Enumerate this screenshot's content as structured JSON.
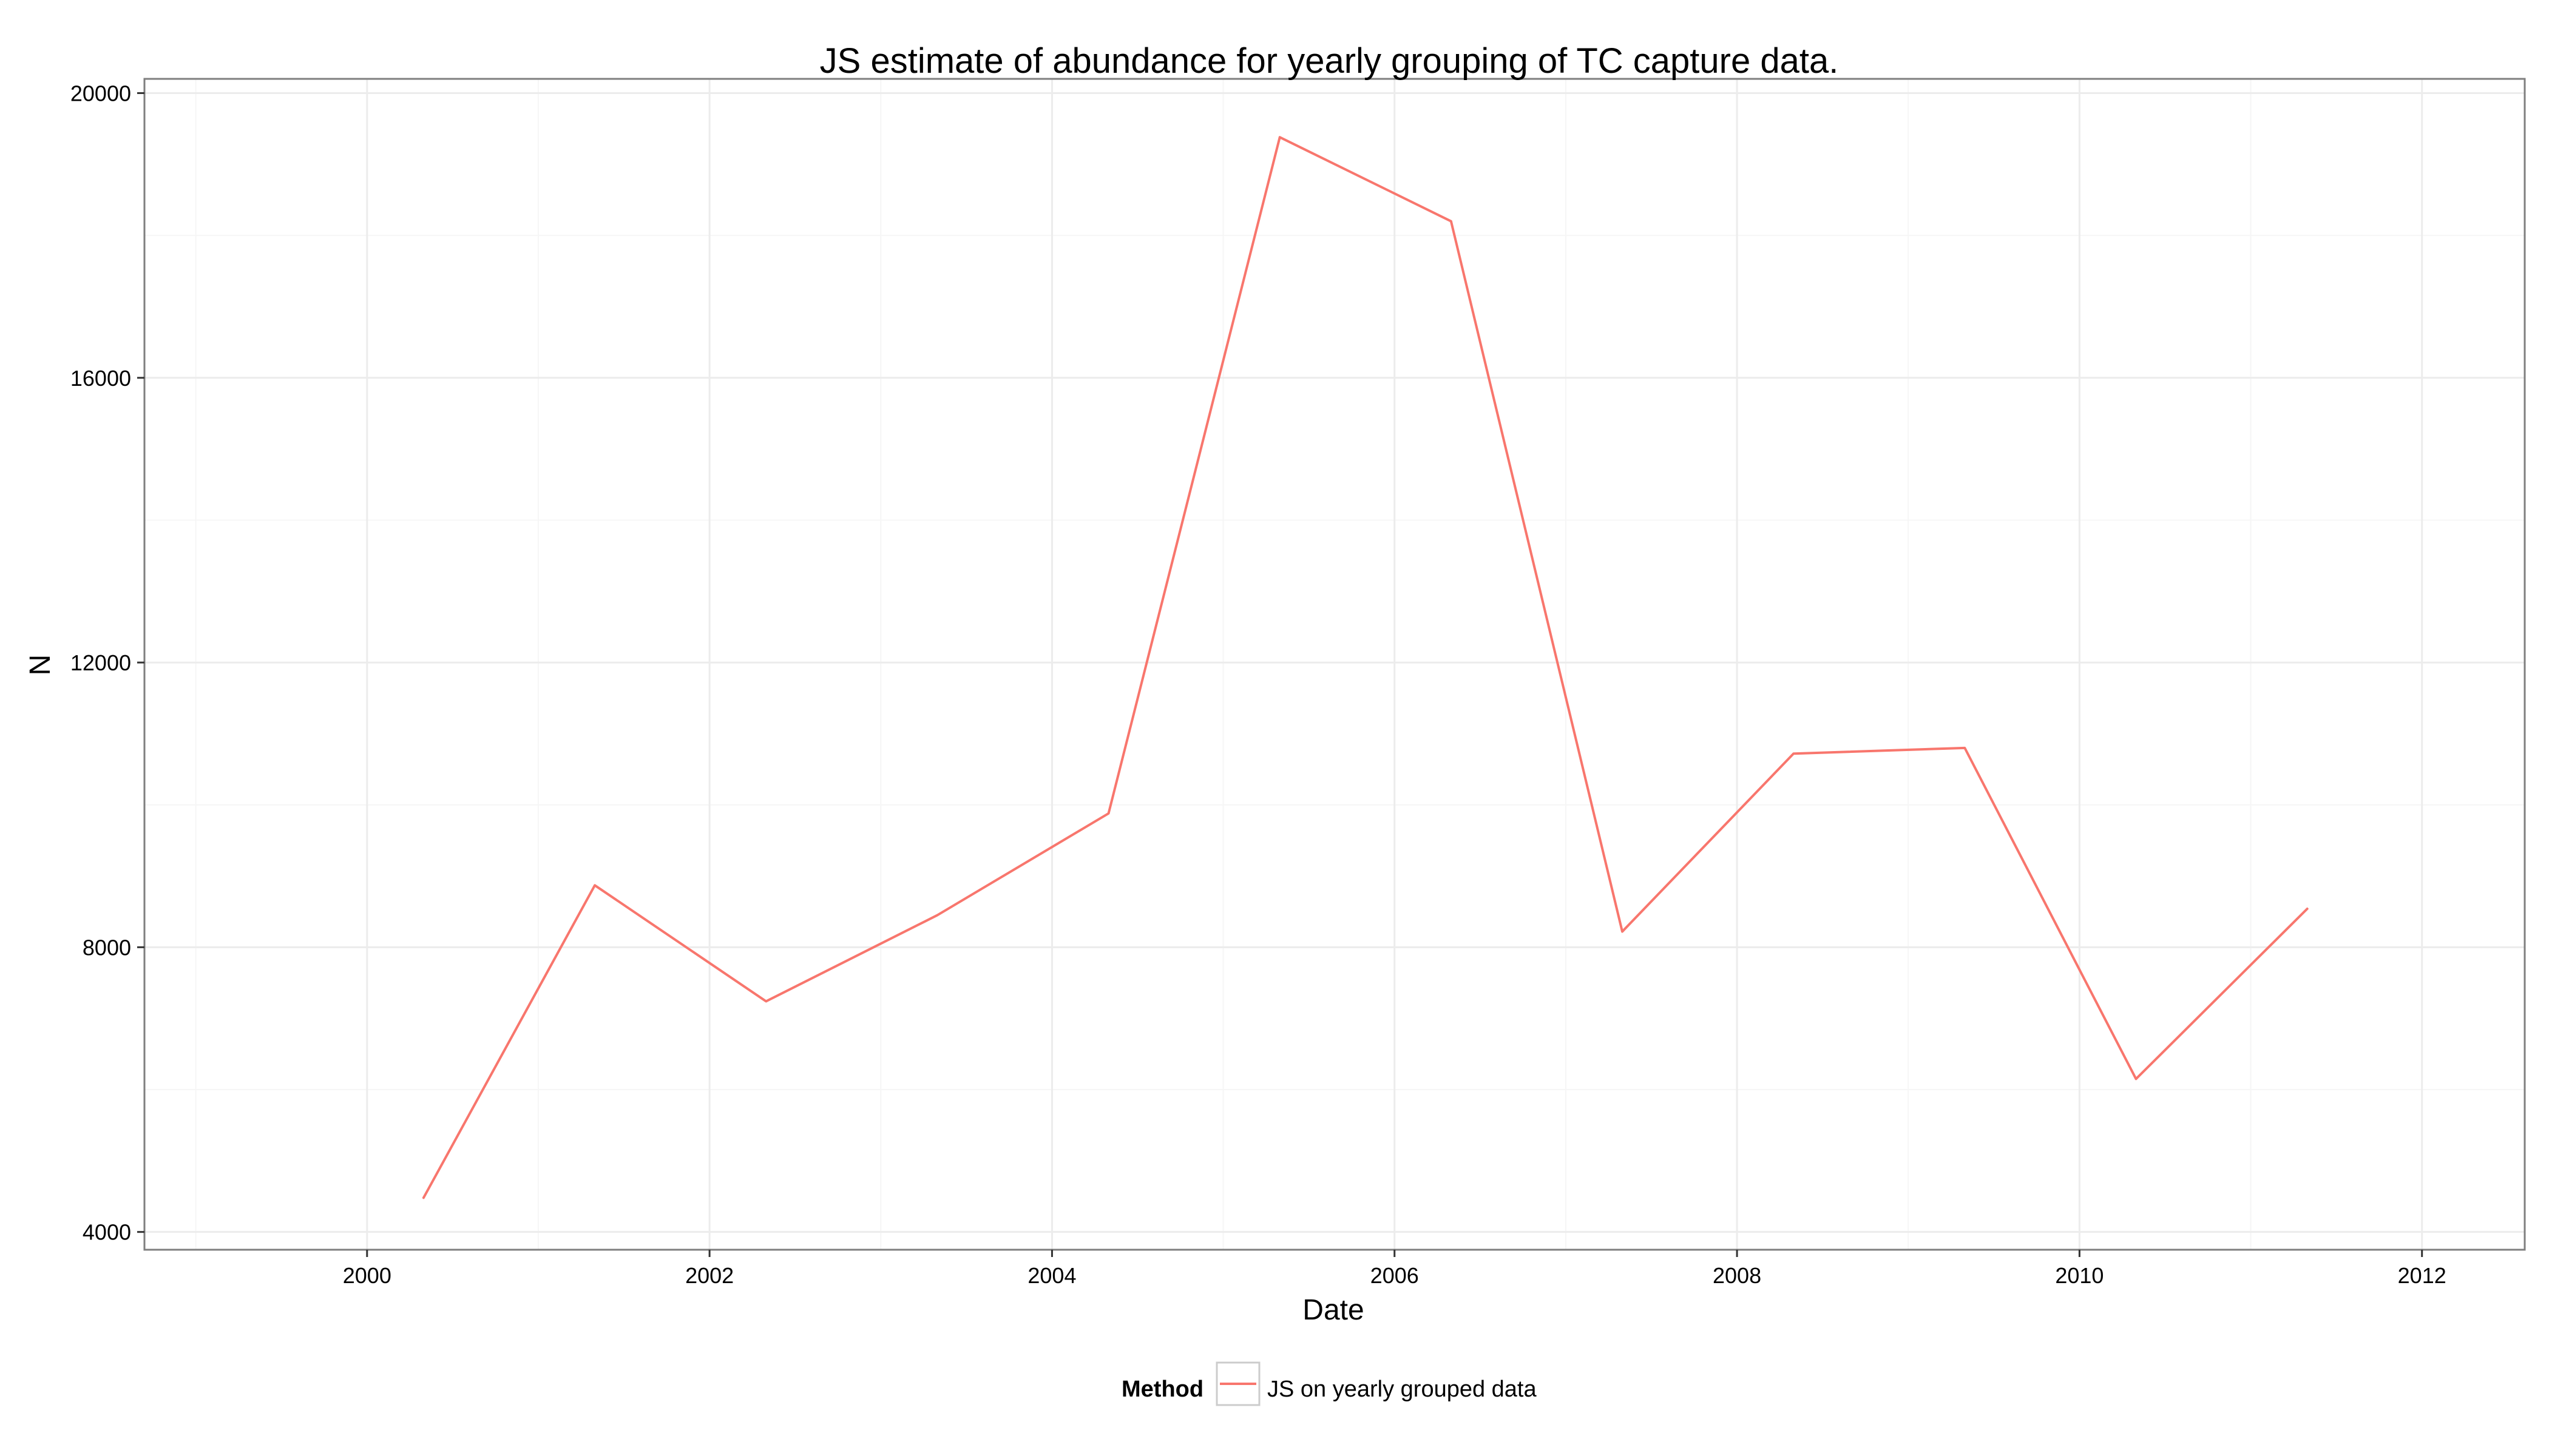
{
  "chart_data": {
    "type": "line",
    "title": "JS estimate of abundance for yearly grouping of TC capture data.",
    "xlabel": "Date",
    "ylabel": "N",
    "x_ticks": [
      "2000",
      "2002",
      "2004",
      "2006",
      "2008",
      "2010",
      "2012"
    ],
    "y_ticks": [
      "4000",
      "8000",
      "12000",
      "16000",
      "20000"
    ],
    "xlim": [
      1998.7,
      2012.6
    ],
    "ylim": [
      3750,
      20200
    ],
    "grid": true,
    "legend": {
      "position": "bottom",
      "title": "Method"
    },
    "series": [
      {
        "name": "JS on yearly grouped data",
        "color": "#F8766D",
        "x": [
          2000.33,
          2001.33,
          2002.33,
          2003.33,
          2004.33,
          2005.33,
          2006.33,
          2007.33,
          2008.33,
          2009.33,
          2010.33,
          2011.33
        ],
        "y": [
          4480,
          8870,
          7240,
          8450,
          9880,
          19380,
          18200,
          8220,
          10720,
          10800,
          6150,
          8540
        ]
      }
    ]
  }
}
